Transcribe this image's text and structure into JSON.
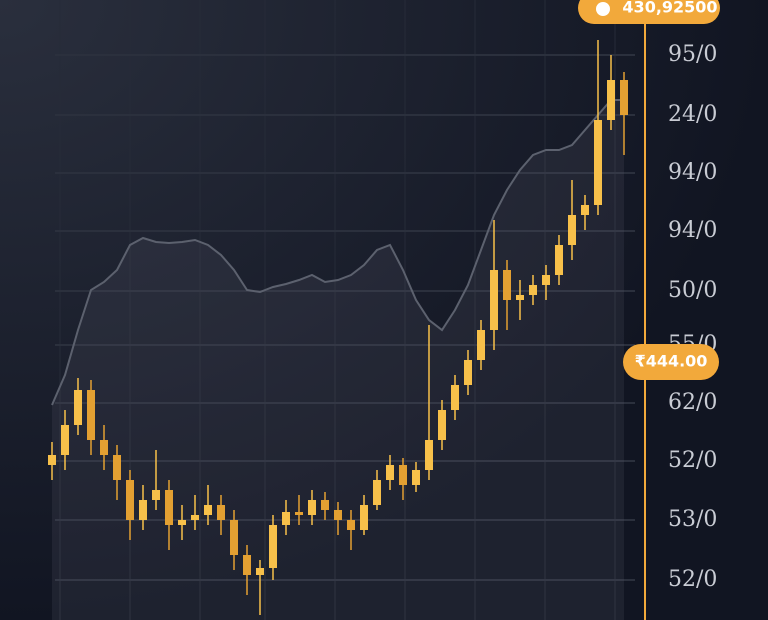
{
  "chart_data": {
    "type": "candlestick",
    "price_badge": "₹444.00",
    "top_badge": "430,92500",
    "ylim": [
      0,
      620
    ],
    "yticks": [
      {
        "value": 565,
        "label": "95/0"
      },
      {
        "value": 505,
        "label": "24/0"
      },
      {
        "value": 447,
        "label": "94/0"
      },
      {
        "value": 389,
        "label": "94/0"
      },
      {
        "value": 329,
        "label": "50/0"
      },
      {
        "value": 275,
        "label": "55/0"
      },
      {
        "value": 217,
        "label": "62/0"
      },
      {
        "value": 159,
        "label": "52/0"
      },
      {
        "value": 100,
        "label": "53/0"
      },
      {
        "value": 40,
        "label": "52/0"
      }
    ],
    "grid": true,
    "up_color": "#f7c04a",
    "down_color": "#e3a032",
    "area_color": "#5c616e",
    "open": [
      155,
      165,
      195,
      230,
      180,
      165,
      140,
      100,
      120,
      130,
      95,
      100,
      105,
      115,
      100,
      65,
      45,
      52,
      95,
      108,
      105,
      120,
      110,
      100,
      90,
      115,
      140,
      155,
      135,
      150,
      180,
      210,
      235,
      260,
      290,
      350,
      320,
      325,
      335,
      345,
      375,
      405,
      415,
      500,
      540
    ],
    "high": [
      178,
      210,
      242,
      240,
      195,
      175,
      150,
      135,
      170,
      140,
      115,
      125,
      135,
      125,
      110,
      75,
      60,
      105,
      120,
      125,
      130,
      128,
      118,
      110,
      125,
      150,
      165,
      162,
      158,
      295,
      220,
      245,
      270,
      300,
      400,
      360,
      340,
      345,
      355,
      385,
      440,
      425,
      580,
      565,
      548
    ],
    "low": [
      140,
      150,
      185,
      165,
      150,
      120,
      80,
      90,
      110,
      70,
      80,
      90,
      95,
      85,
      50,
      25,
      5,
      40,
      85,
      95,
      95,
      100,
      85,
      70,
      85,
      110,
      130,
      120,
      128,
      140,
      170,
      200,
      225,
      250,
      270,
      290,
      300,
      315,
      320,
      335,
      360,
      390,
      405,
      490,
      465
    ],
    "close": [
      165,
      195,
      230,
      180,
      165,
      140,
      100,
      120,
      130,
      95,
      100,
      105,
      115,
      100,
      65,
      45,
      52,
      95,
      108,
      105,
      120,
      110,
      100,
      90,
      115,
      140,
      155,
      135,
      150,
      180,
      210,
      235,
      260,
      290,
      350,
      320,
      325,
      335,
      345,
      375,
      405,
      415,
      500,
      540,
      505
    ],
    "area_values": [
      215,
      245,
      290,
      330,
      338,
      350,
      375,
      382,
      378,
      377,
      378,
      380,
      375,
      365,
      350,
      330,
      328,
      333,
      336,
      340,
      345,
      338,
      340,
      345,
      355,
      370,
      375,
      350,
      320,
      300,
      290,
      310,
      335,
      370,
      405,
      430,
      450,
      465,
      470,
      470,
      475,
      490,
      505,
      520,
      520
    ]
  }
}
